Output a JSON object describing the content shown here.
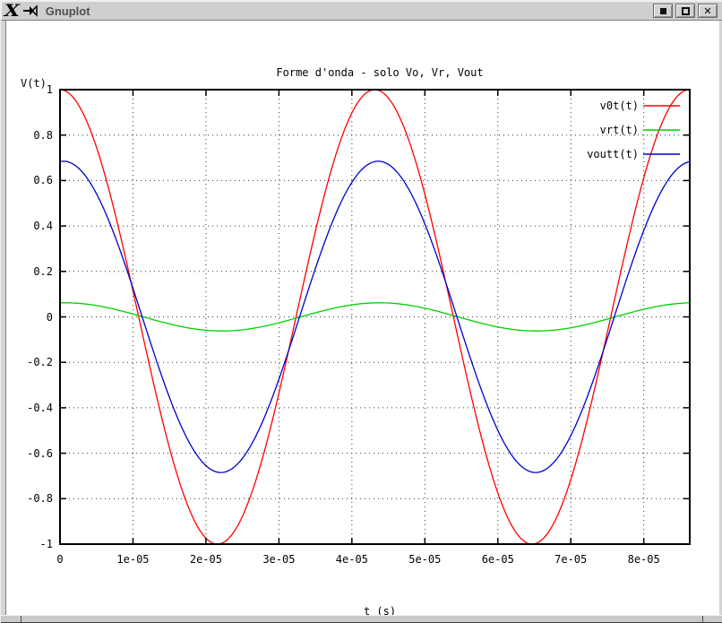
{
  "window": {
    "title": "Gnuplot",
    "x11_logo": "X",
    "buttons": {
      "minimize_label": "minimize",
      "maximize_label": "maximize",
      "close_label": "x"
    }
  },
  "chart_data": {
    "type": "line",
    "title": "Forme d'onda - solo Vo, Vr, Vout",
    "xlabel": "t (s)",
    "ylabel": "V(t)",
    "xlim": [
      0,
      8.63e-05
    ],
    "ylim": [
      -1,
      1
    ],
    "grid": true,
    "legend_position": "top-right-inside",
    "x_ticks": [
      {
        "value": 0,
        "label": "0"
      },
      {
        "value": 1e-05,
        "label": "1e-05"
      },
      {
        "value": 2e-05,
        "label": "2e-05"
      },
      {
        "value": 3e-05,
        "label": "3e-05"
      },
      {
        "value": 4e-05,
        "label": "4e-05"
      },
      {
        "value": 5e-05,
        "label": "5e-05"
      },
      {
        "value": 6e-05,
        "label": "6e-05"
      },
      {
        "value": 7e-05,
        "label": "7e-05"
      },
      {
        "value": 8e-05,
        "label": "8e-05"
      }
    ],
    "y_ticks": [
      {
        "value": -1,
        "label": "-1"
      },
      {
        "value": -0.8,
        "label": "-0.8"
      },
      {
        "value": -0.6,
        "label": "-0.6"
      },
      {
        "value": -0.4,
        "label": "-0.4"
      },
      {
        "value": -0.2,
        "label": "-0.2"
      },
      {
        "value": 0,
        "label": "0"
      },
      {
        "value": 0.2,
        "label": "0.2"
      },
      {
        "value": 0.4,
        "label": "0.4"
      },
      {
        "value": 0.6,
        "label": "0.6"
      },
      {
        "value": 0.8,
        "label": "0.8"
      },
      {
        "value": 1,
        "label": "1"
      }
    ],
    "series": [
      {
        "name": "v0t(t)",
        "color": "#ff0000",
        "waveform": "cosine",
        "formula": "A*cos(2*pi*t/T - phi)",
        "amplitude": 1.0,
        "period_s": 4.313e-05,
        "phase_lag_rad": 0.0,
        "value_at_t0": 1.0
      },
      {
        "name": "vrt(t)",
        "color": "#00d000",
        "waveform": "cosine",
        "formula": "A*cos(2*pi*t/T - phi)",
        "amplitude": 0.062,
        "period_s": 4.313e-05,
        "phase_lag_rad": 0.09,
        "value_at_t0": 0.06
      },
      {
        "name": "voutt(t)",
        "color": "#0000cc",
        "waveform": "cosine",
        "formula": "A*cos(2*pi*t/T - phi)",
        "amplitude": 0.685,
        "period_s": 4.313e-05,
        "phase_lag_rad": 0.07,
        "value_at_t0": 0.683
      }
    ]
  }
}
